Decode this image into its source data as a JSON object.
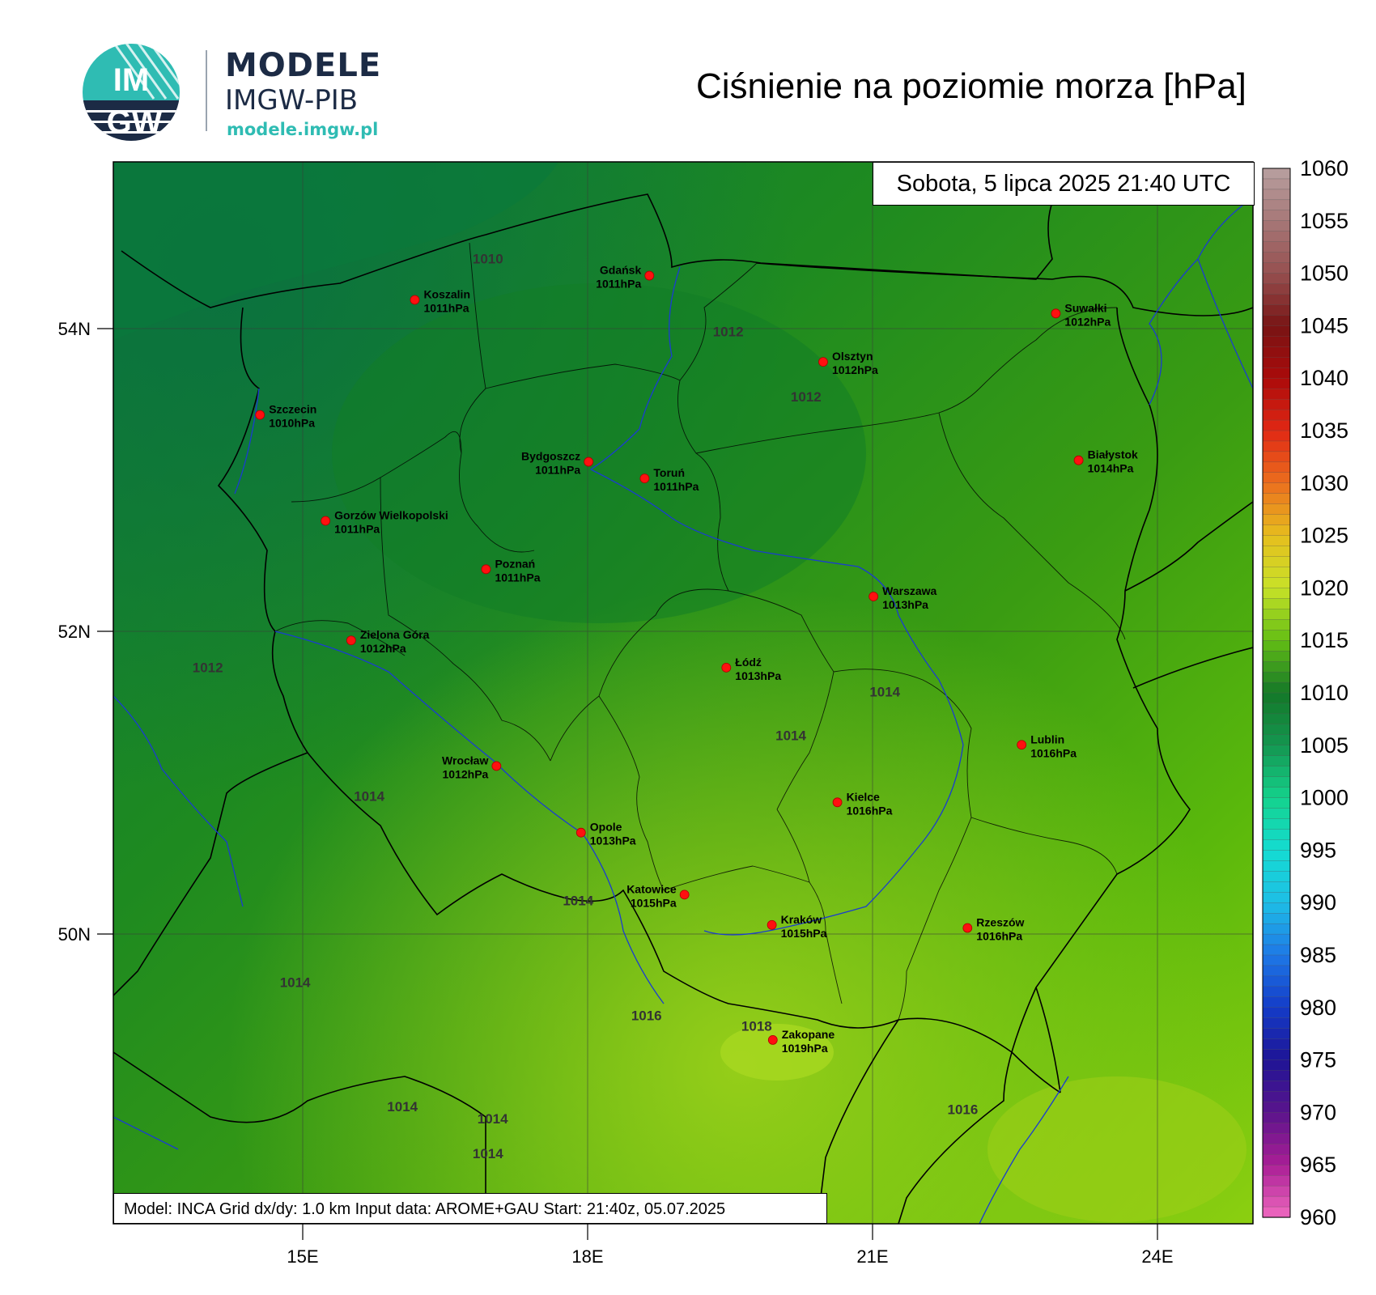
{
  "logo": {
    "title": "MODELE",
    "subtitle": "IMGW-PIB",
    "url": "modele.imgw.pl",
    "badge_top": "IM",
    "badge_bottom": "GW"
  },
  "title": "Ciśnienie na poziomie morza [hPa]",
  "datetime": "Sobota, 5 lipca 2025 21:40 UTC",
  "info": "Model: INCA   Grid dx/dy: 1.0 km   Input data: AROME+GAU   Start: 21:40z, 05.07.2025",
  "axes": {
    "lat_labels": [
      {
        "value": 54,
        "label": "54N"
      },
      {
        "value": 52,
        "label": "52N"
      },
      {
        "value": 50,
        "label": "50N"
      }
    ],
    "lon_labels": [
      {
        "value": 15,
        "label": "15E"
      },
      {
        "value": 18,
        "label": "18E"
      },
      {
        "value": 21,
        "label": "21E"
      },
      {
        "value": 24,
        "label": "24E"
      }
    ]
  },
  "colorbar": {
    "labels": [
      "1060",
      "1055",
      "1050",
      "1045",
      "1040",
      "1035",
      "1030",
      "1025",
      "1020",
      "1015",
      "1010",
      "1005",
      "1000",
      "995",
      "990",
      "985",
      "980",
      "975",
      "970",
      "965",
      "960"
    ],
    "top_color": "#b8a0a0",
    "bottom_color": "#f06ac0"
  },
  "cities": [
    {
      "name": "Koszalin",
      "value": "1011hPa",
      "lon": 16.18,
      "lat": 54.19
    },
    {
      "name": "Gdańsk",
      "value": "1011hPa",
      "lon": 18.65,
      "lat": 54.35
    },
    {
      "name": "Suwałki",
      "value": "1012hPa",
      "lon": 22.93,
      "lat": 54.1
    },
    {
      "name": "Olsztyn",
      "value": "1012hPa",
      "lon": 20.48,
      "lat": 53.78
    },
    {
      "name": "Szczecin",
      "value": "1010hPa",
      "lon": 14.55,
      "lat": 53.43
    },
    {
      "name": "Białystok",
      "value": "1014hPa",
      "lon": 23.17,
      "lat": 53.13
    },
    {
      "name": "Bydgoszcz",
      "value": "1011hPa",
      "lon": 18.01,
      "lat": 53.12
    },
    {
      "name": "Toruń",
      "value": "1011hPa",
      "lon": 18.6,
      "lat": 53.01
    },
    {
      "name": "Gorzów Wielkopolski",
      "value": "1011hPa",
      "lon": 15.24,
      "lat": 52.73
    },
    {
      "name": "Poznań",
      "value": "1011hPa",
      "lon": 16.93,
      "lat": 52.41
    },
    {
      "name": "Warszawa",
      "value": "1013hPa",
      "lon": 21.01,
      "lat": 52.23
    },
    {
      "name": "Zielona Góra",
      "value": "1012hPa",
      "lon": 15.51,
      "lat": 51.94
    },
    {
      "name": "Łódź",
      "value": "1013hPa",
      "lon": 19.46,
      "lat": 51.76
    },
    {
      "name": "Lublin",
      "value": "1016hPa",
      "lon": 22.57,
      "lat": 51.25
    },
    {
      "name": "Wrocław",
      "value": "1012hPa",
      "lon": 17.04,
      "lat": 51.11
    },
    {
      "name": "Kielce",
      "value": "1016hPa",
      "lon": 20.63,
      "lat": 50.87
    },
    {
      "name": "Opole",
      "value": "1013hPa",
      "lon": 17.93,
      "lat": 50.67
    },
    {
      "name": "Katowice",
      "value": "1015hPa",
      "lon": 19.02,
      "lat": 50.26
    },
    {
      "name": "Kraków",
      "value": "1015hPa",
      "lon": 19.94,
      "lat": 50.06
    },
    {
      "name": "Rzeszów",
      "value": "1016hPa",
      "lon": 22.0,
      "lat": 50.04
    },
    {
      "name": "Zakopane",
      "value": "1019hPa",
      "lon": 19.95,
      "lat": 49.3
    }
  ],
  "isobar_labels": [
    {
      "text": "1010",
      "lon": 16.95,
      "lat": 54.43
    },
    {
      "text": "1012",
      "lon": 19.48,
      "lat": 53.95
    },
    {
      "text": "1012",
      "lon": 20.3,
      "lat": 53.52
    },
    {
      "text": "1012",
      "lon": 14.0,
      "lat": 51.73
    },
    {
      "text": "1014",
      "lon": 21.13,
      "lat": 51.57
    },
    {
      "text": "1014",
      "lon": 20.14,
      "lat": 51.28
    },
    {
      "text": "1014",
      "lon": 15.7,
      "lat": 50.88
    },
    {
      "text": "1014",
      "lon": 17.9,
      "lat": 50.19
    },
    {
      "text": "1014",
      "lon": 14.92,
      "lat": 49.65
    },
    {
      "text": "1016",
      "lon": 18.62,
      "lat": 49.43
    },
    {
      "text": "1018",
      "lon": 19.78,
      "lat": 49.36
    },
    {
      "text": "1014",
      "lon": 16.05,
      "lat": 48.83
    },
    {
      "text": "1014",
      "lon": 17.0,
      "lat": 48.75
    },
    {
      "text": "1016",
      "lon": 21.95,
      "lat": 48.81
    },
    {
      "text": "1014",
      "lon": 16.95,
      "lat": 48.52
    }
  ]
}
